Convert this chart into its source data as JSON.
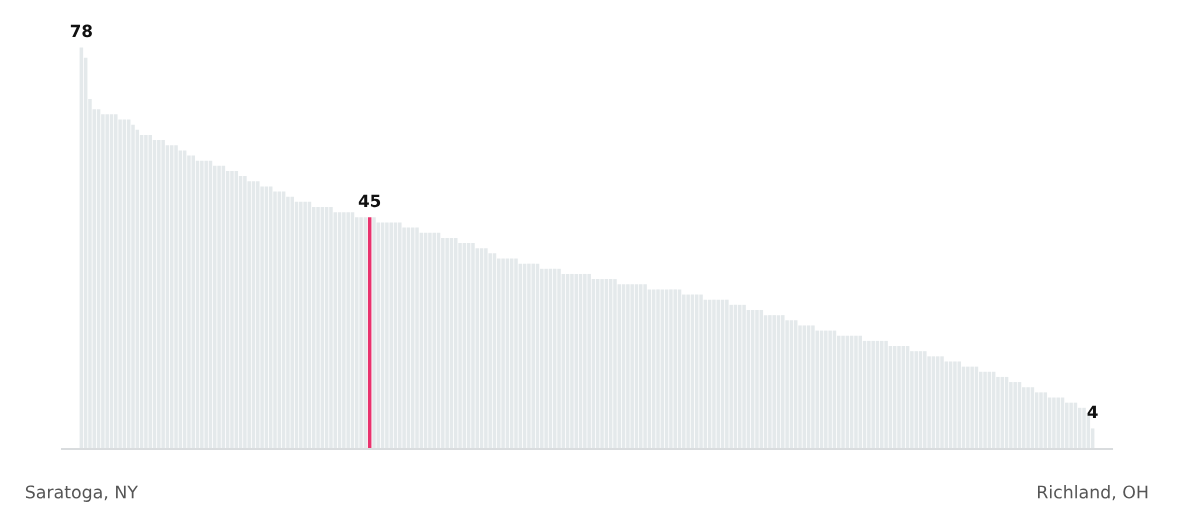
{
  "chart_data": {
    "type": "bar",
    "tick_labels": "x",
    "grid": false,
    "categories": [
      "Saratoga, NY",
      null,
      null,
      null,
      null,
      null,
      null,
      null,
      null,
      null,
      null,
      null,
      null,
      null,
      null,
      null,
      null,
      null,
      null,
      null,
      null,
      null,
      null,
      null,
      null,
      null,
      null,
      null,
      null,
      null,
      null,
      null,
      null,
      null,
      null,
      null,
      null,
      null,
      null,
      null,
      null,
      null,
      null,
      null,
      null,
      null,
      null,
      null,
      null,
      null,
      null,
      null,
      null,
      null,
      null,
      null,
      null,
      null,
      null,
      null,
      null,
      null,
      null,
      null,
      null,
      null,
      null,
      null,
      null,
      null,
      null,
      null,
      null,
      null,
      null,
      null,
      null,
      null,
      null,
      null,
      null,
      null,
      null,
      null,
      null,
      null,
      null,
      null,
      null,
      null,
      null,
      null,
      null,
      null,
      null,
      null,
      null,
      null,
      null,
      null,
      null,
      null,
      null,
      null,
      null,
      null,
      null,
      null,
      null,
      null,
      null,
      null,
      null,
      null,
      null,
      null,
      null,
      null,
      null,
      null,
      null,
      null,
      null,
      null,
      null,
      null,
      null,
      null,
      null,
      null,
      null,
      null,
      null,
      null,
      null,
      null,
      null,
      null,
      null,
      null,
      null,
      null,
      null,
      null,
      null,
      null,
      null,
      null,
      null,
      null,
      null,
      null,
      null,
      null,
      null,
      null,
      null,
      null,
      null,
      null,
      null,
      null,
      null,
      null,
      null,
      null,
      null,
      null,
      null,
      null,
      null,
      null,
      null,
      null,
      null,
      null,
      null,
      null,
      null,
      null,
      null,
      null,
      null,
      null,
      null,
      null,
      null,
      null,
      null,
      null,
      null,
      null,
      null,
      null,
      null,
      null,
      null,
      null,
      null,
      null,
      null,
      null,
      null,
      null,
      null,
      null,
      null,
      null,
      null,
      null,
      null,
      null,
      null,
      null,
      null,
      null,
      null,
      null,
      null,
      null,
      null,
      null,
      null,
      null,
      null,
      null,
      null,
      null,
      null,
      null,
      null,
      null,
      null,
      null,
      null,
      "Richland, OH"
    ],
    "values": [
      78,
      76,
      68,
      66,
      66,
      65,
      65,
      65,
      65,
      64,
      64,
      64,
      63,
      62,
      61,
      61,
      61,
      60,
      60,
      60,
      59,
      59,
      59,
      58,
      58,
      57,
      57,
      56,
      56,
      56,
      56,
      55,
      55,
      55,
      54,
      54,
      54,
      53,
      53,
      52,
      52,
      52,
      51,
      51,
      51,
      50,
      50,
      50,
      49,
      49,
      48,
      48,
      48,
      48,
      47,
      47,
      47,
      47,
      47,
      46,
      46,
      46,
      46,
      46,
      45,
      45,
      45,
      45,
      45,
      44,
      44,
      44,
      44,
      44,
      44,
      43,
      43,
      43,
      43,
      42,
      42,
      42,
      42,
      42,
      41,
      41,
      41,
      41,
      40,
      40,
      40,
      40,
      39,
      39,
      39,
      38,
      38,
      37,
      37,
      37,
      37,
      37,
      36,
      36,
      36,
      36,
      36,
      35,
      35,
      35,
      35,
      35,
      34,
      34,
      34,
      34,
      34,
      34,
      34,
      33,
      33,
      33,
      33,
      33,
      33,
      32,
      32,
      32,
      32,
      32,
      32,
      32,
      31,
      31,
      31,
      31,
      31,
      31,
      31,
      31,
      30,
      30,
      30,
      30,
      30,
      29,
      29,
      29,
      29,
      29,
      29,
      28,
      28,
      28,
      28,
      27,
      27,
      27,
      27,
      26,
      26,
      26,
      26,
      26,
      25,
      25,
      25,
      24,
      24,
      24,
      24,
      23,
      23,
      23,
      23,
      23,
      22,
      22,
      22,
      22,
      22,
      22,
      21,
      21,
      21,
      21,
      21,
      21,
      20,
      20,
      20,
      20,
      20,
      19,
      19,
      19,
      19,
      18,
      18,
      18,
      18,
      17,
      17,
      17,
      17,
      16,
      16,
      16,
      16,
      15,
      15,
      15,
      15,
      14,
      14,
      14,
      13,
      13,
      13,
      12,
      12,
      12,
      11,
      11,
      11,
      10,
      10,
      10,
      10,
      9,
      9,
      9,
      8,
      8,
      7,
      4
    ],
    "value_labels": [
      "78",
      null,
      null,
      null,
      null,
      null,
      null,
      null,
      null,
      null,
      null,
      null,
      null,
      null,
      null,
      null,
      null,
      null,
      null,
      null,
      null,
      null,
      null,
      null,
      null,
      null,
      null,
      null,
      null,
      null,
      null,
      null,
      null,
      null,
      null,
      null,
      null,
      null,
      null,
      null,
      null,
      null,
      null,
      null,
      null,
      null,
      null,
      null,
      null,
      null,
      null,
      null,
      null,
      null,
      null,
      null,
      null,
      null,
      null,
      null,
      null,
      null,
      null,
      null,
      null,
      null,
      null,
      "45",
      null,
      null,
      null,
      null,
      null,
      null,
      null,
      null,
      null,
      null,
      null,
      null,
      null,
      null,
      null,
      null,
      null,
      null,
      null,
      null,
      null,
      null,
      null,
      null,
      null,
      null,
      null,
      null,
      null,
      null,
      null,
      null,
      null,
      null,
      null,
      null,
      null,
      null,
      null,
      null,
      null,
      null,
      null,
      null,
      null,
      null,
      null,
      null,
      null,
      null,
      null,
      null,
      null,
      null,
      null,
      null,
      null,
      null,
      null,
      null,
      null,
      null,
      null,
      null,
      null,
      null,
      null,
      null,
      null,
      null,
      null,
      null,
      null,
      null,
      null,
      null,
      null,
      null,
      null,
      null,
      null,
      null,
      null,
      null,
      null,
      null,
      null,
      null,
      null,
      null,
      null,
      null,
      null,
      null,
      null,
      null,
      null,
      null,
      null,
      null,
      null,
      null,
      null,
      null,
      null,
      null,
      null,
      null,
      null,
      null,
      null,
      null,
      null,
      null,
      null,
      null,
      null,
      null,
      null,
      null,
      null,
      null,
      null,
      null,
      null,
      null,
      null,
      null,
      null,
      null,
      null,
      null,
      null,
      null,
      null,
      null,
      null,
      null,
      null,
      null,
      null,
      null,
      null,
      null,
      null,
      null,
      null,
      null,
      null,
      null,
      null,
      null,
      null,
      null,
      null,
      null,
      null,
      null,
      null,
      null,
      null,
      null,
      null,
      null,
      null,
      null,
      null,
      "4"
    ],
    "colors": [
      "#e4e9eb",
      "#e4e9eb",
      "#e4e9eb",
      "#e4e9eb",
      "#e4e9eb",
      "#e4e9eb",
      "#e4e9eb",
      "#e4e9eb",
      "#e4e9eb",
      "#e4e9eb",
      "#e4e9eb",
      "#e4e9eb",
      "#e4e9eb",
      "#e4e9eb",
      "#e4e9eb",
      "#e4e9eb",
      "#e4e9eb",
      "#e4e9eb",
      "#e4e9eb",
      "#e4e9eb",
      "#e4e9eb",
      "#e4e9eb",
      "#e4e9eb",
      "#e4e9eb",
      "#e4e9eb",
      "#e4e9eb",
      "#e4e9eb",
      "#e4e9eb",
      "#e4e9eb",
      "#e4e9eb",
      "#e4e9eb",
      "#e4e9eb",
      "#e4e9eb",
      "#e4e9eb",
      "#e4e9eb",
      "#e4e9eb",
      "#e4e9eb",
      "#e4e9eb",
      "#e4e9eb",
      "#e4e9eb",
      "#e4e9eb",
      "#e4e9eb",
      "#e4e9eb",
      "#e4e9eb",
      "#e4e9eb",
      "#e4e9eb",
      "#e4e9eb",
      "#e4e9eb",
      "#e4e9eb",
      "#e4e9eb",
      "#e4e9eb",
      "#e4e9eb",
      "#e4e9eb",
      "#e4e9eb",
      "#e4e9eb",
      "#e4e9eb",
      "#e4e9eb",
      "#e4e9eb",
      "#e4e9eb",
      "#e4e9eb",
      "#e4e9eb",
      "#e4e9eb",
      "#e4e9eb",
      "#e4e9eb",
      "#e4e9eb",
      "#e4e9eb",
      "#e4e9eb",
      "#e8336e",
      "#e4e9eb",
      "#e4e9eb",
      "#e4e9eb",
      "#e4e9eb",
      "#e4e9eb",
      "#e4e9eb",
      "#e4e9eb",
      "#e4e9eb",
      "#e4e9eb",
      "#e4e9eb",
      "#e4e9eb",
      "#e4e9eb",
      "#e4e9eb",
      "#e4e9eb",
      "#e4e9eb",
      "#e4e9eb",
      "#e4e9eb",
      "#e4e9eb",
      "#e4e9eb",
      "#e4e9eb",
      "#e4e9eb",
      "#e4e9eb",
      "#e4e9eb",
      "#e4e9eb",
      "#e4e9eb",
      "#e4e9eb",
      "#e4e9eb",
      "#e4e9eb",
      "#e4e9eb",
      "#e4e9eb",
      "#e4e9eb",
      "#e4e9eb",
      "#e4e9eb",
      "#e4e9eb",
      "#e4e9eb",
      "#e4e9eb",
      "#e4e9eb",
      "#e4e9eb",
      "#e4e9eb",
      "#e4e9eb",
      "#e4e9eb",
      "#e4e9eb",
      "#e4e9eb",
      "#e4e9eb",
      "#e4e9eb",
      "#e4e9eb",
      "#e4e9eb",
      "#e4e9eb",
      "#e4e9eb",
      "#e4e9eb",
      "#e4e9eb",
      "#e4e9eb",
      "#e4e9eb",
      "#e4e9eb",
      "#e4e9eb",
      "#e4e9eb",
      "#e4e9eb",
      "#e4e9eb",
      "#e4e9eb",
      "#e4e9eb",
      "#e4e9eb",
      "#e4e9eb",
      "#e4e9eb",
      "#e4e9eb",
      "#e4e9eb",
      "#e4e9eb",
      "#e4e9eb",
      "#e4e9eb",
      "#e4e9eb",
      "#e4e9eb",
      "#e4e9eb",
      "#e4e9eb",
      "#e4e9eb",
      "#e4e9eb",
      "#e4e9eb",
      "#e4e9eb",
      "#e4e9eb",
      "#e4e9eb",
      "#e4e9eb",
      "#e4e9eb",
      "#e4e9eb",
      "#e4e9eb",
      "#e4e9eb",
      "#e4e9eb",
      "#e4e9eb",
      "#e4e9eb",
      "#e4e9eb",
      "#e4e9eb",
      "#e4e9eb",
      "#e4e9eb",
      "#e4e9eb",
      "#e4e9eb",
      "#e4e9eb",
      "#e4e9eb",
      "#e4e9eb",
      "#e4e9eb",
      "#e4e9eb",
      "#e4e9eb",
      "#e4e9eb",
      "#e4e9eb",
      "#e4e9eb",
      "#e4e9eb",
      "#e4e9eb",
      "#e4e9eb",
      "#e4e9eb",
      "#e4e9eb",
      "#e4e9eb",
      "#e4e9eb",
      "#e4e9eb",
      "#e4e9eb",
      "#e4e9eb",
      "#e4e9eb",
      "#e4e9eb",
      "#e4e9eb",
      "#e4e9eb",
      "#e4e9eb",
      "#e4e9eb",
      "#e4e9eb",
      "#e4e9eb",
      "#e4e9eb",
      "#e4e9eb",
      "#e4e9eb",
      "#e4e9eb",
      "#e4e9eb",
      "#e4e9eb",
      "#e4e9eb",
      "#e4e9eb",
      "#e4e9eb",
      "#e4e9eb",
      "#e4e9eb",
      "#e4e9eb",
      "#e4e9eb",
      "#e4e9eb",
      "#e4e9eb",
      "#e4e9eb",
      "#e4e9eb",
      "#e4e9eb",
      "#e4e9eb",
      "#e4e9eb",
      "#e4e9eb",
      "#e4e9eb",
      "#e4e9eb",
      "#e4e9eb",
      "#e4e9eb",
      "#e4e9eb",
      "#e4e9eb",
      "#e4e9eb",
      "#e4e9eb",
      "#e4e9eb",
      "#e4e9eb",
      "#e4e9eb",
      "#e4e9eb",
      "#e4e9eb",
      "#e4e9eb",
      "#e4e9eb",
      "#e4e9eb",
      "#e4e9eb",
      "#e4e9eb",
      "#e4e9eb",
      "#e4e9eb",
      "#e4e9eb",
      "#e4e9eb",
      "#e4e9eb",
      "#e4e9eb",
      "#e4e9eb",
      "#e4e9eb",
      "#e4e9eb",
      "#e4e9eb"
    ]
  }
}
